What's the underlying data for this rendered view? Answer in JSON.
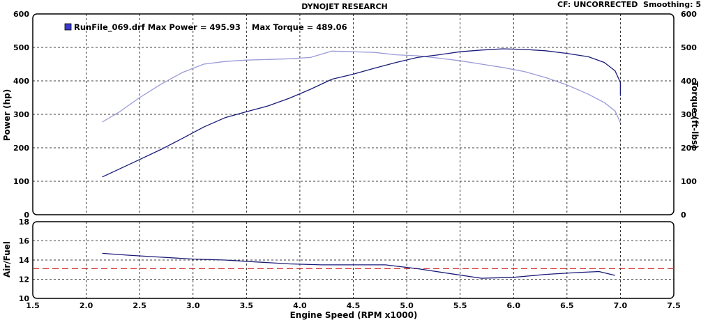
{
  "header": {
    "title": "DYNOJET RESEARCH",
    "cf": "CF: UNCORRECTED  Smoothing: 5"
  },
  "legend": {
    "label": "RunFile_069.drf Max Power = 495.93    Max Torque = 489.06",
    "swatch_color": "#3a3ad0"
  },
  "colors": {
    "power_line": "#1a1a7a",
    "torque_line": "#9a9ad8",
    "af_line": "#1a1a7a",
    "af_reference": "#d03030",
    "frame": "#000000"
  },
  "chart_data": [
    {
      "type": "line",
      "title": "",
      "ylabel": "Power (hp)",
      "y2label": "Torque (ft-lbs)",
      "ylim": [
        0,
        600
      ],
      "y2lim": [
        0,
        600
      ],
      "xlim": [
        1.5,
        7.5
      ],
      "yticks": [
        "0",
        "100",
        "200",
        "300",
        "400",
        "500",
        "600"
      ],
      "y2ticks": [
        "0",
        "100",
        "200",
        "300",
        "400",
        "500",
        "600"
      ],
      "grid": true,
      "series": [
        {
          "name": "Power",
          "axis": "left",
          "x": [
            2.15,
            2.3,
            2.5,
            2.7,
            2.9,
            3.1,
            3.3,
            3.5,
            3.7,
            3.9,
            4.1,
            4.3,
            4.5,
            4.7,
            4.9,
            5.1,
            5.3,
            5.5,
            5.7,
            5.9,
            6.1,
            6.3,
            6.5,
            6.7,
            6.85,
            6.95,
            7.0,
            7.0
          ],
          "values": [
            113,
            135,
            165,
            195,
            228,
            262,
            290,
            308,
            325,
            348,
            375,
            405,
            420,
            438,
            455,
            470,
            478,
            487,
            492,
            495.93,
            494,
            490,
            482,
            472,
            455,
            430,
            395,
            355
          ]
        },
        {
          "name": "Torque",
          "axis": "right",
          "x": [
            2.15,
            2.3,
            2.5,
            2.7,
            2.9,
            3.1,
            3.3,
            3.5,
            3.7,
            3.9,
            4.1,
            4.3,
            4.5,
            4.7,
            4.9,
            5.1,
            5.3,
            5.5,
            5.7,
            5.9,
            6.1,
            6.3,
            6.5,
            6.7,
            6.85,
            6.95,
            7.0
          ],
          "values": [
            277,
            305,
            350,
            390,
            425,
            450,
            458,
            462,
            464,
            466,
            470,
            489.06,
            487,
            485,
            478,
            475,
            468,
            460,
            450,
            440,
            428,
            410,
            388,
            360,
            335,
            310,
            275
          ]
        }
      ]
    },
    {
      "type": "line",
      "title": "",
      "xlabel": "Engine Speed (RPM x1000)",
      "ylabel": "Air/Fuel",
      "ylim": [
        10,
        18
      ],
      "xlim": [
        1.5,
        7.5
      ],
      "yticks": [
        "10",
        "12",
        "14",
        "16",
        "18"
      ],
      "xticks": [
        "1.5",
        "2.0",
        "2.5",
        "3.0",
        "3.5",
        "4.0",
        "4.5",
        "5.0",
        "5.5",
        "6.0",
        "6.5",
        "7.0",
        "7.5"
      ],
      "grid": true,
      "reference_value": 13.1,
      "series": [
        {
          "name": "Air/Fuel",
          "x": [
            2.15,
            2.4,
            2.7,
            3.0,
            3.3,
            3.6,
            3.9,
            4.2,
            4.5,
            4.8,
            5.1,
            5.4,
            5.7,
            6.0,
            6.3,
            6.6,
            6.8,
            6.95
          ],
          "values": [
            14.7,
            14.5,
            14.3,
            14.1,
            14.0,
            13.8,
            13.6,
            13.5,
            13.5,
            13.5,
            13.1,
            12.6,
            12.1,
            12.2,
            12.5,
            12.7,
            12.8,
            12.4
          ]
        }
      ]
    }
  ]
}
